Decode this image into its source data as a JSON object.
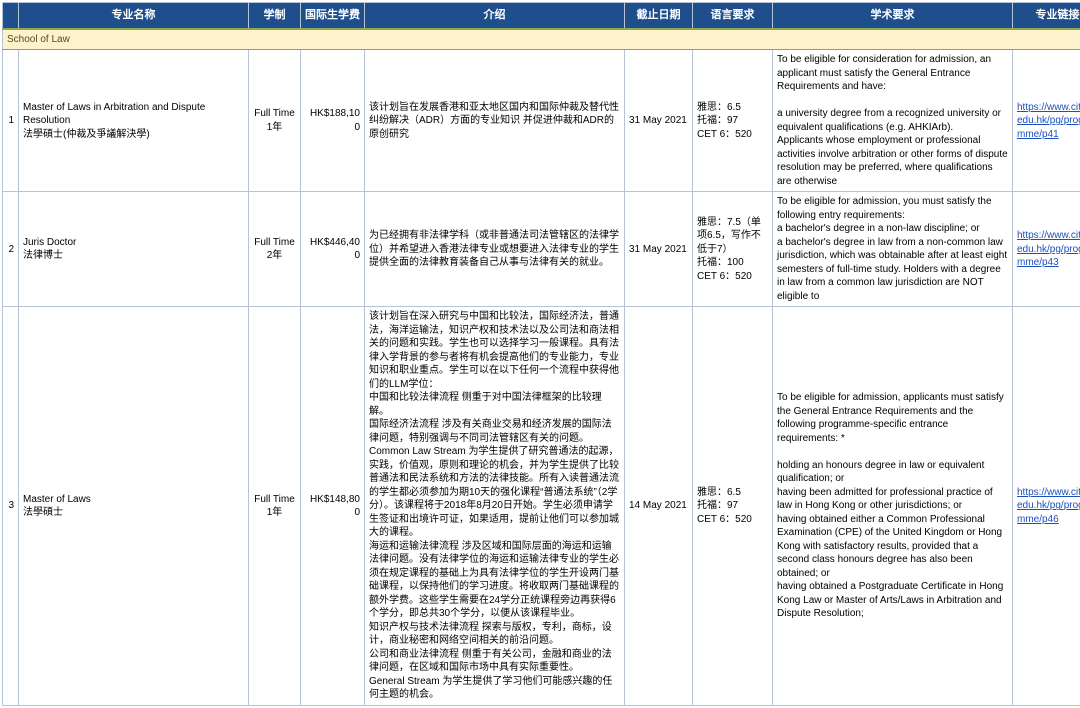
{
  "headers": {
    "col_blank": "",
    "name": "专业名称",
    "mode": "学制",
    "fee": "国际生学费",
    "intro": "介绍",
    "deadline": "截止日期",
    "lang": "语言要求",
    "acad": "学术要求",
    "link": "专业链接"
  },
  "school_row": "School of Law",
  "colors": {
    "header_bg": "#1f4e8c",
    "header_fg": "#ffffff",
    "school_bg": "#fdf2cc",
    "school_fg": "#5a4a1a",
    "border": "#b8c4d6",
    "link": "#1a4fbf"
  },
  "fontsize": {
    "header": 11,
    "body": 10
  },
  "rows": [
    {
      "idx": "1",
      "name": "Master of Laws in Arbitration and Dispute Resolution\n法學碩士(仲裁及爭議解決學)",
      "mode": "Full Time\n1年",
      "fee": "HK$188,100",
      "intro": "该计划旨在发展香港和亚太地区国内和国际仲裁及替代性纠纷解决（ADR）方面的专业知识 并促进仲裁和ADR的原创研究",
      "deadline": "31 May 2021",
      "lang": "雅思：6.5\n托福：97\nCET 6：520",
      "acad": "To be eligible for consideration for admission, an applicant must satisfy the General Entrance Requirements and have:\n\na university degree from a recognized university or equivalent qualifications (e.g. AHKIArb).\nApplicants whose employment or professional activities involve arbitration or other forms of dispute resolution may be preferred, where qualifications are otherwise",
      "link": "https://www.cityu.edu.hk/pg/programme/p41"
    },
    {
      "idx": "2",
      "name": "Juris Doctor\n法律博士",
      "mode": "Full Time\n2年",
      "fee": "HK$446,400",
      "intro": "为已经拥有非法律学科（或非普通法司法管辖区的法律学位）并希望进入香港法律专业或想要进入法律专业的学生提供全面的法律教育装备自己从事与法律有关的就业。",
      "deadline": "31 May 2021",
      "lang": "雅思：7.5（单项6.5，写作不低于7）\n托福：100\nCET 6：520",
      "acad": "To be eligible for admission, you must satisfy the following entry requirements:\na bachelor's degree in a non-law discipline; or\na bachelor's degree in law from a non-common law jurisdiction, which was obtainable after at least eight semesters of full-time study.  Holders with a degree in law from a common law jurisdiction are NOT eligible to",
      "link": "https://www.cityu.edu.hk/pg/programme/p43"
    },
    {
      "idx": "3",
      "name": "Master of Laws\n法學碩士",
      "mode": "Full Time\n1年",
      "fee": "HK$148,800",
      "intro": "该计划旨在深入研究与中国和比较法，国际经济法，普通法，海洋运输法，知识产权和技术法以及公司法和商法相关的问题和实践。学生也可以选择学习一般课程。具有法律入学背景的参与者将有机会提高他们的专业能力，专业知识和职业重点。学生可以在以下任何一个流程中获得他们的LLM学位：\n中国和比较法律流程  侧重于对中国法律框架的比较理解。\n国际经济法流程  涉及有关商业交易和经济发展的国际法律问题，特别强调与不同司法管辖区有关的问题。\nCommon Law Stream  为学生提供了研究普通法的起源，实践，价值观，原则和理论的机会，并为学生提供了比较普通法和民法系统和方法的法律技能。所有入读普通法流的学生都必须参加为期10天的强化课程“普通法系统”（2学分）。该课程将于2018年8月20日开始。学生必须申请学生签证和出境许可证，如果适用，提前让他们可以参加城大的课程。\n海运和运输法律流程  涉及区域和国际层面的海运和运输法律问题。没有法律学位的海运和运输法律专业的学生必须在规定课程的基础上为具有法律学位的学生开设两门基础课程，以保持他们的学习进度。将收取两门基础课程的额外学费。这些学生需要在24学分正统课程旁边再获得6个学分，即总共30个学分，以便从该课程毕业。\n知识产权与技术法律流程  探索与版权，专利，商标，设计，商业秘密和网络空间相关的前沿问题。\n公司和商业法律流程  侧重于有关公司，金融和商业的法律问题，在区域和国际市场中具有实际重要性。\nGeneral Stream  为学生提供了学习他们可能感兴趣的任何主题的机会。",
      "deadline": "14 May 2021",
      "lang": "雅思：6.5\n托福：97\nCET 6：520",
      "acad": "To be eligible for admission, applicants must satisfy the General Entrance Requirements and the following programme-specific entrance requirements: *\n\nholding an honours degree in law or equivalent qualification; or\nhaving been admitted for professional practice of law in Hong Kong or other jurisdictions; or\nhaving obtained either a Common Professional Examination (CPE) of the United Kingdom or Hong Kong with satisfactory results, provided that a second class honours degree has also been obtained; or\nhaving obtained a Postgraduate Certificate in Hong Kong Law or Master of Arts/Laws in Arbitration and Dispute Resolution;",
      "link": "https://www.cityu.edu.hk/pg/programme/p46"
    }
  ]
}
